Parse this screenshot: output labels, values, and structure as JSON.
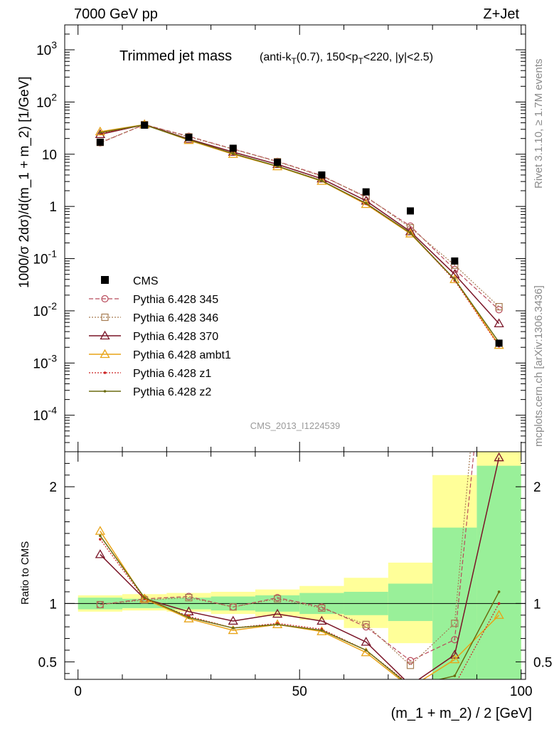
{
  "header": {
    "left": "7000 GeV pp",
    "right": "Z+Jet"
  },
  "side_labels": {
    "rivet": "Rivet 3.1.10, ≥ 1.7M events",
    "mcplots": "mcplots.cern.ch [arXiv:1306.3436]"
  },
  "watermark": "CMS_2013_I1224539",
  "chart_data": {
    "type": "scatter",
    "title_main": "Trimmed jet mass",
    "title_sub": "(anti-k_T(0.7), 150<p_T<220, |y|<2.5)",
    "ylabel_main": "1000/σ 2dσ)/d(m_1 + m_2) [1/GeV]",
    "ylabel_ratio": "Ratio to CMS",
    "xlabel": "(m_1 + m_2) / 2 [GeV]",
    "xlim": [
      -3,
      101
    ],
    "ylim_main": [
      2e-05,
      3000
    ],
    "ylim_ratio": [
      0.35,
      2.3
    ],
    "yscale_main": "log",
    "x_ticks": [
      {
        "value": 0,
        "label": "0"
      },
      {
        "value": 50,
        "label": "50"
      },
      {
        "value": 100,
        "label": "100"
      }
    ],
    "y_ticks_main": [
      {
        "value": 0.0001,
        "base": "10",
        "exp": "-4"
      },
      {
        "value": 0.001,
        "base": "10",
        "exp": "-3"
      },
      {
        "value": 0.01,
        "base": "10",
        "exp": "-2"
      },
      {
        "value": 0.1,
        "base": "10",
        "exp": "-1"
      },
      {
        "value": 1,
        "base": "1",
        "exp": ""
      },
      {
        "value": 10,
        "base": "10",
        "exp": ""
      },
      {
        "value": 100,
        "base": "10",
        "exp": "2"
      },
      {
        "value": 1000,
        "base": "10",
        "exp": "3"
      }
    ],
    "y_ticks_ratio": [
      {
        "value": 0.5,
        "label": "0.5"
      },
      {
        "value": 1,
        "label": "1"
      },
      {
        "value": 2,
        "label": "2"
      }
    ],
    "bin_edges": [
      0,
      10,
      20,
      30,
      40,
      50,
      60,
      70,
      80,
      90,
      100
    ],
    "data": {
      "name": "CMS",
      "x": [
        5,
        15,
        25,
        35,
        45,
        55,
        65,
        75,
        85,
        95
      ],
      "y": [
        17,
        36,
        21,
        13,
        7,
        4,
        1.9,
        0.82,
        0.09,
        0.0024
      ]
    },
    "bands_inner": [
      [
        0.95,
        1.05
      ],
      [
        0.96,
        1.04
      ],
      [
        0.95,
        1.05
      ],
      [
        0.94,
        1.06
      ],
      [
        0.93,
        1.07
      ],
      [
        0.91,
        1.09
      ],
      [
        0.9,
        1.1
      ],
      [
        0.85,
        1.17
      ],
      [
        0.35,
        1.65
      ],
      [
        0.35,
        2.18
      ]
    ],
    "bands_outer": [
      [
        0.93,
        1.07
      ],
      [
        0.94,
        1.08
      ],
      [
        0.93,
        1.09
      ],
      [
        0.91,
        1.1
      ],
      [
        0.89,
        1.12
      ],
      [
        0.86,
        1.15
      ],
      [
        0.79,
        1.22
      ],
      [
        0.66,
        1.35
      ],
      [
        0.35,
        2.1
      ],
      [
        0.35,
        2.3
      ]
    ],
    "series": [
      {
        "name": "Pythia 6.428 345",
        "color": "#b84a5a",
        "dash": "6,3",
        "marker": "circle",
        "stroke_w": 1.2,
        "y": [
          16.5,
          37,
          22,
          12.6,
          7.3,
          3.9,
          1.5,
          0.42,
          0.062,
          0.0105
        ],
        "ratio": [
          0.99,
          1.04,
          1.06,
          0.97,
          1.05,
          0.97,
          0.8,
          0.51,
          0.69,
          4.4
        ]
      },
      {
        "name": "Pythia 6.428 346",
        "color": "#a67c52",
        "dash": "2,2",
        "marker": "square",
        "stroke_w": 1.2,
        "y": [
          16.8,
          37,
          21.5,
          12.5,
          7.2,
          3.8,
          1.55,
          0.39,
          0.075,
          0.012
        ],
        "ratio": [
          0.99,
          1.03,
          1.05,
          0.97,
          1.04,
          0.96,
          0.82,
          0.47,
          0.83,
          5.0
        ]
      },
      {
        "name": "Pythia 6.428 370",
        "color": "#7a1427",
        "dash": "",
        "marker": "triangle",
        "stroke_w": 1.5,
        "y": [
          24,
          37,
          19.5,
          11,
          6.4,
          3.4,
          1.28,
          0.33,
          0.05,
          0.0057
        ],
        "ratio": [
          1.42,
          1.04,
          0.93,
          0.85,
          0.91,
          0.85,
          0.67,
          0.3,
          0.56,
          2.25
        ]
      },
      {
        "name": "Pythia 6.428 ambt1",
        "color": "#e8a317",
        "dash": "",
        "marker": "triangle",
        "stroke_w": 1.5,
        "y": [
          27,
          37,
          18.5,
          10,
          5.8,
          3.05,
          1.1,
          0.3,
          0.04,
          0.0022
        ],
        "ratio": [
          1.62,
          1.04,
          0.87,
          0.77,
          0.82,
          0.76,
          0.58,
          0.28,
          0.52,
          0.9
        ]
      },
      {
        "name": "Pythia 6.428 z1",
        "color": "#cc2222",
        "dash": "2,2",
        "marker": "dot",
        "stroke_w": 1.2,
        "y": [
          25,
          36.5,
          19,
          10.2,
          5.9,
          3.15,
          1.12,
          0.31,
          0.038,
          0.0021
        ],
        "ratio": [
          1.55,
          1.04,
          0.89,
          0.79,
          0.83,
          0.78,
          0.6,
          0.3,
          0.3,
          1.0
        ]
      },
      {
        "name": "Pythia 6.428 z2",
        "color": "#6b6b10",
        "dash": "",
        "marker": "dot",
        "stroke_w": 1.5,
        "y": [
          26,
          36.5,
          19,
          10.3,
          5.9,
          3.1,
          1.15,
          0.31,
          0.04,
          0.0025
        ],
        "ratio": [
          1.58,
          1.05,
          0.88,
          0.79,
          0.82,
          0.77,
          0.6,
          0.29,
          0.38,
          1.1
        ]
      }
    ],
    "legend_placement": "center-left"
  }
}
